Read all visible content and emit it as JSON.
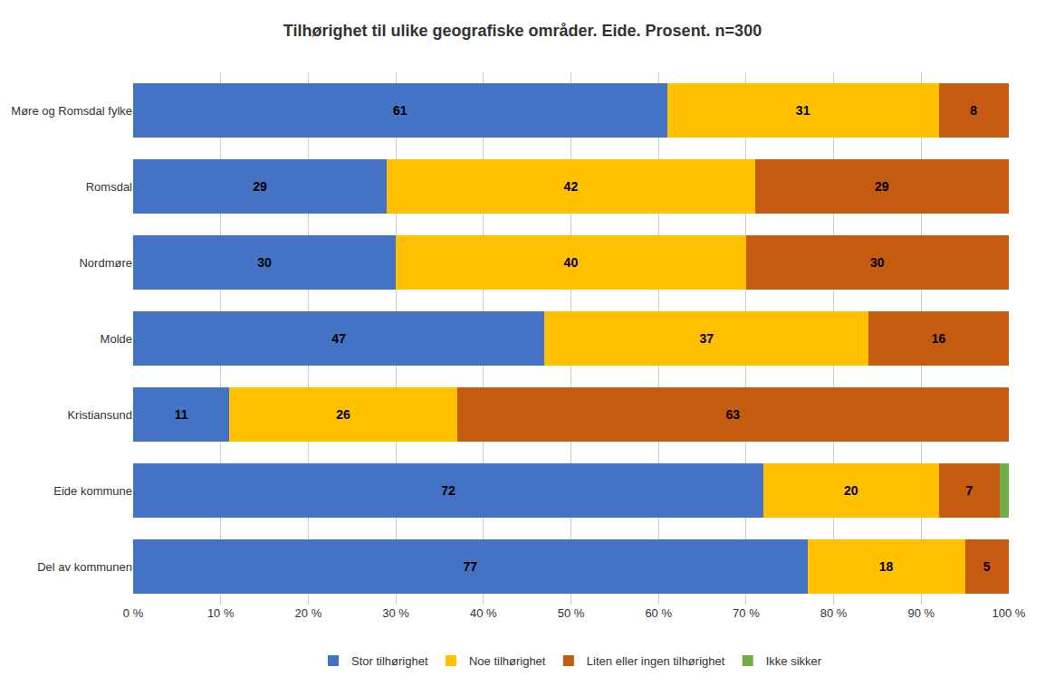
{
  "chart_data": {
    "type": "bar",
    "orientation": "horizontal",
    "stacked": true,
    "title": "Tilhørighet til ulike geografiske områder. Eide. Prosent. n=300",
    "categories": [
      "Møre og Romsdal fylke",
      "Romsdal",
      "Nordmøre",
      "Molde",
      "Kristiansund",
      "Eide kommune",
      "Del av kommunen"
    ],
    "series": [
      {
        "name": "Stor tilhørighet",
        "color": "#4472C4",
        "values": [
          61,
          29,
          30,
          47,
          11,
          72,
          77
        ],
        "value_labels": [
          "61",
          "29",
          "30",
          "47",
          "11",
          "72",
          "77"
        ]
      },
      {
        "name": "Noe tilhørighet",
        "color": "#FFC000",
        "values": [
          31,
          42,
          40,
          37,
          26,
          20,
          18
        ],
        "value_labels": [
          "31",
          "42",
          "40",
          "37",
          "26",
          "20",
          "18"
        ]
      },
      {
        "name": "Liten eller ingen tilhørighet",
        "color": "#C55A11",
        "values": [
          8,
          29,
          30,
          16,
          63,
          7,
          5
        ],
        "value_labels": [
          "8",
          "29",
          "30",
          "16",
          "63",
          "7",
          "5"
        ]
      },
      {
        "name": "Ikke sikker",
        "color": "#70AD47",
        "values": [
          0,
          0,
          0,
          0,
          0,
          1,
          0
        ],
        "value_labels": [
          null,
          null,
          null,
          null,
          null,
          null,
          null
        ]
      }
    ],
    "xlim": [
      0,
      100
    ],
    "xticks": [
      {
        "value": 0,
        "label": "0 %"
      },
      {
        "value": 10,
        "label": "10 %"
      },
      {
        "value": 20,
        "label": "20 %"
      },
      {
        "value": 30,
        "label": "30 %"
      },
      {
        "value": 40,
        "label": "40 %"
      },
      {
        "value": 50,
        "label": "50 %"
      },
      {
        "value": 60,
        "label": "60 %"
      },
      {
        "value": 70,
        "label": "70 %"
      },
      {
        "value": 80,
        "label": "80 %"
      },
      {
        "value": 90,
        "label": "90 %"
      },
      {
        "value": 100,
        "label": "100 %"
      }
    ],
    "grid": true,
    "legend": "bottom",
    "data_labels": true
  }
}
